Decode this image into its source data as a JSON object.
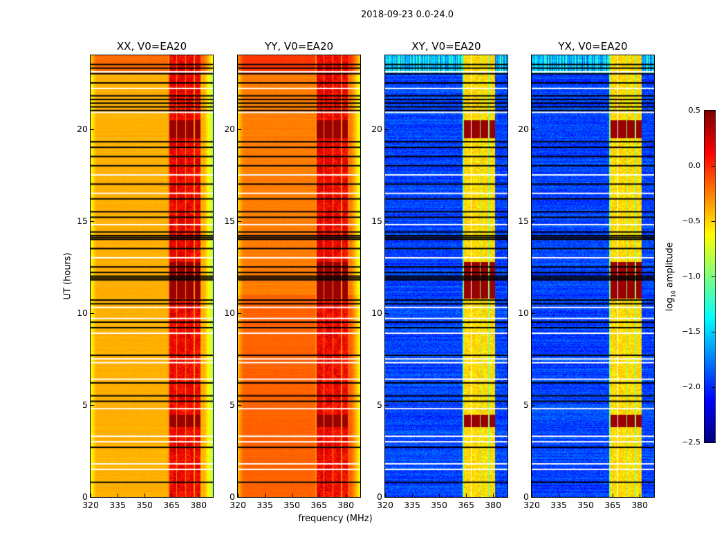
{
  "chart_data": {
    "type": "heatmap",
    "title": "2018-09-23 0.0-24.0",
    "xlabel": "frequency (MHz)",
    "ylabel": "UT (hours)",
    "xlim": [
      320,
      388
    ],
    "ylim": [
      0,
      24
    ],
    "xticks": [
      "320",
      "335",
      "350",
      "365",
      "380"
    ],
    "xtick_values": [
      320,
      335,
      350,
      365,
      380
    ],
    "yticks": [
      "0",
      "5",
      "10",
      "15",
      "20"
    ],
    "ytick_values": [
      0,
      5,
      10,
      15,
      20
    ],
    "panels": [
      {
        "title": "XX, V0=EA20",
        "pol": "XX",
        "base_level": -0.45,
        "rfi_level": 0.05
      },
      {
        "title": "YY, V0=EA20",
        "pol": "YY",
        "base_level": -0.3,
        "rfi_level": 0.05
      },
      {
        "title": "XY, V0=EA20",
        "pol": "XY",
        "base_level": -2.2,
        "rfi_level": -0.7
      },
      {
        "title": "YX, V0=EA20",
        "pol": "YX",
        "base_level": -2.2,
        "rfi_level": -0.7
      }
    ],
    "rfi_band_mhz": [
      363,
      381
    ],
    "strong_rfi_hours": [
      [
        3.8,
        4.5
      ],
      [
        10.8,
        12.8
      ],
      [
        19.5,
        20.5
      ]
    ],
    "flagged_hours": [
      0.8,
      2.7,
      5.2,
      5.5,
      6.2,
      7.7,
      9.2,
      9.5,
      10.5,
      10.7,
      11.8,
      11.9,
      12.0,
      12.2,
      12.5,
      13.5,
      14.0,
      14.1,
      14.2,
      14.4,
      15.2,
      15.5,
      16.2,
      17.0,
      18.0,
      18.5,
      19.0,
      19.3,
      21.0,
      21.2,
      21.4,
      21.6,
      21.8,
      22.5,
      23.0,
      23.3,
      23.5
    ],
    "gap_hours": [
      1.5,
      1.8,
      3.0,
      3.3,
      4.8,
      6.4,
      7.3,
      7.5,
      8.9,
      9.7,
      10.3,
      13.0,
      14.8,
      16.5,
      17.5,
      20.9,
      22.2,
      23.1
    ],
    "colorbar": {
      "label": "log10 amplitude",
      "label_base": "log",
      "label_sub": "10",
      "label_rest": " amplitude",
      "range": [
        -2.5,
        0.5
      ],
      "colormap": "jet",
      "ticks": [
        "0.5",
        "0.0",
        "−0.5",
        "−1.0",
        "−1.5",
        "−2.0",
        "−2.5"
      ],
      "tick_values": [
        0.5,
        0.0,
        -0.5,
        -1.0,
        -1.5,
        -2.0,
        -2.5
      ]
    }
  }
}
